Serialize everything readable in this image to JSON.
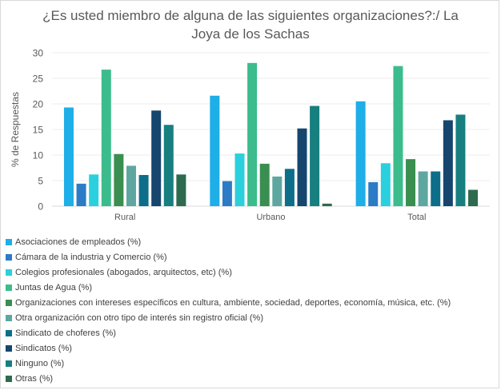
{
  "chart_data": {
    "type": "bar",
    "title": "¿Es usted miembro de alguna de las siguientes organizaciones?:/ La Joya de los Sachas",
    "title_lines": [
      "¿Es usted miembro de alguna de las siguientes organizaciones?:/ La",
      "Joya de los Sachas"
    ],
    "xlabel": "",
    "ylabel": "% de Respuestas",
    "ylim": [
      0,
      30
    ],
    "yticks": [
      0,
      5,
      10,
      15,
      20,
      25,
      30
    ],
    "grid": true,
    "legend_position": "bottom",
    "categories": [
      "Rural",
      "Urbano",
      "Total"
    ],
    "series": [
      {
        "name": "Asociaciones de empleados (%)",
        "color": "#1eaee8",
        "values": [
          19.3,
          21.6,
          20.5
        ]
      },
      {
        "name": "Cámara de la industria y Comercio (%)",
        "color": "#2c7bc6",
        "values": [
          4.4,
          4.9,
          4.7
        ]
      },
      {
        "name": "Colegios profesionales (abogados, arquitectos, etc) (%)",
        "color": "#2bd0de",
        "values": [
          6.2,
          10.3,
          8.4
        ]
      },
      {
        "name": "Juntas de Agua (%)",
        "color": "#3cbc8d",
        "values": [
          26.7,
          28.0,
          27.4
        ]
      },
      {
        "name": "Organizaciones con intereses específicos en cultura, ambiente, sociedad, deportes, economía, música, etc. (%)",
        "color": "#3a8e50",
        "values": [
          10.2,
          8.3,
          9.2
        ]
      },
      {
        "name": "Otra organización con otro tipo de interés sin registro oficial (%)",
        "color": "#5da7a0",
        "values": [
          7.9,
          5.8,
          6.8
        ]
      },
      {
        "name": "Sindicato de choferes (%)",
        "color": "#0d6e8a",
        "values": [
          6.1,
          7.3,
          6.8
        ]
      },
      {
        "name": "Sindicatos (%)",
        "color": "#16466e",
        "values": [
          18.7,
          15.2,
          16.8
        ]
      },
      {
        "name": "Ninguno (%)",
        "color": "#177f7f",
        "values": [
          15.9,
          19.6,
          17.9
        ]
      },
      {
        "name": "Otras (%)",
        "color": "#2e6a4e",
        "values": [
          6.2,
          0.5,
          3.2
        ]
      }
    ]
  }
}
